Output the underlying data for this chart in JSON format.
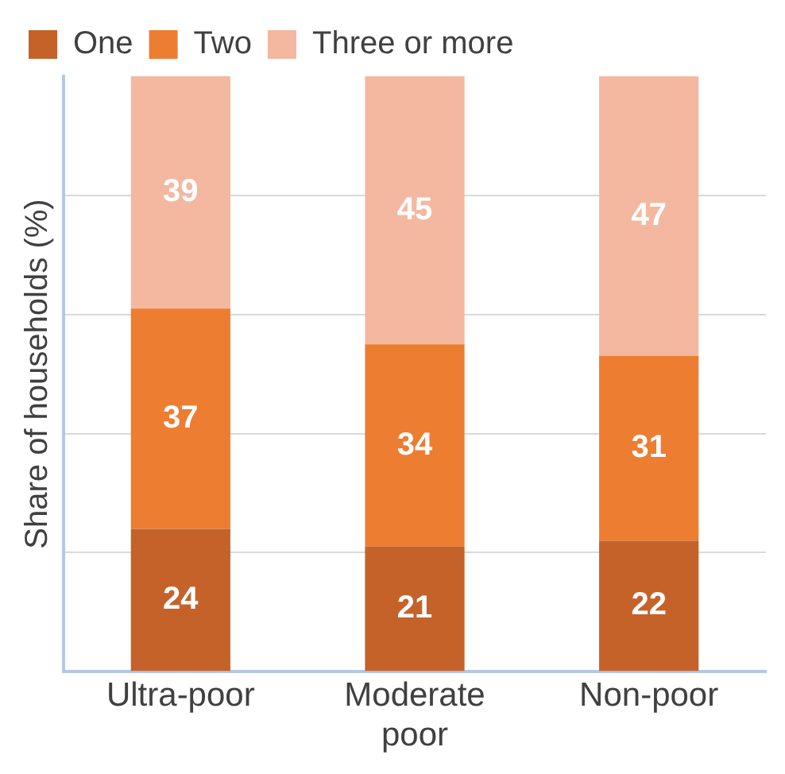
{
  "chart_data": {
    "type": "bar",
    "stacked": true,
    "ylabel": "Share of households (%)",
    "categories": [
      "Ultra-poor",
      "Moderate poor",
      "Non-poor"
    ],
    "series": [
      {
        "name": "One",
        "color": "#c5622a",
        "values": [
          24,
          21,
          22
        ]
      },
      {
        "name": "Two",
        "color": "#ed7d31",
        "values": [
          37,
          34,
          31
        ]
      },
      {
        "name": "Three or more",
        "color": "#f4b8a0",
        "values": [
          39,
          45,
          47
        ]
      }
    ],
    "ylim": [
      0,
      100
    ],
    "yticks": [
      {
        "value": 0,
        "label": null
      },
      {
        "value": 20,
        "label": null
      },
      {
        "value": 40,
        "label": null
      },
      {
        "value": 60,
        "label": null
      },
      {
        "value": 80,
        "label": null
      }
    ],
    "tick_labels": "x",
    "grid": "y",
    "legend": "top",
    "data_labels": true
  }
}
